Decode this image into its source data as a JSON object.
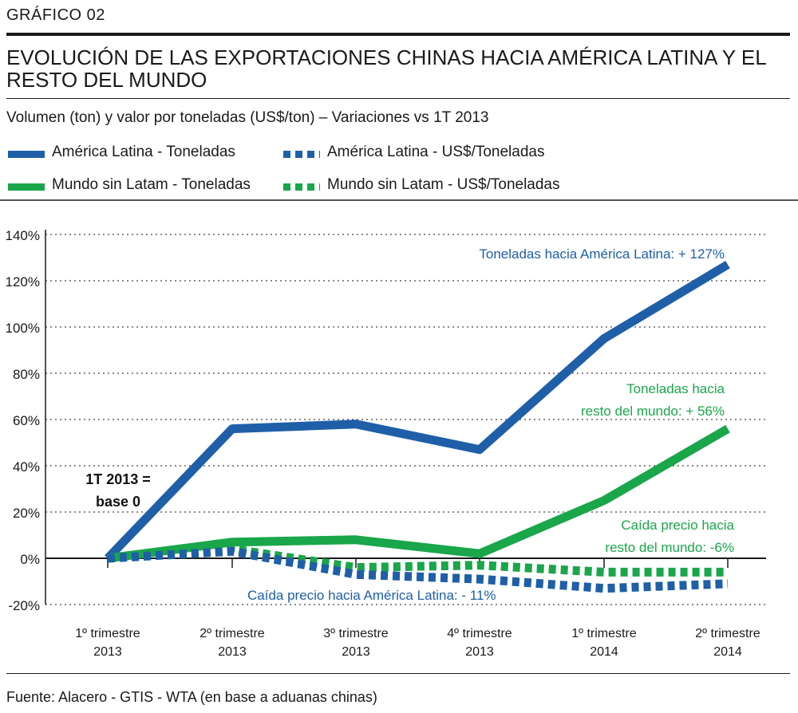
{
  "header": {
    "figure_label": "GRÁFICO  02",
    "title": "EVOLUCIÓN DE LAS EXPORTACIONES CHINAS HACIA AMÉRICA LATINA Y EL RESTO DEL MUNDO",
    "subtitle": "Volumen (ton) y valor por toneladas (US$/ton) – Variaciones vs 1T 2013"
  },
  "legend": [
    {
      "label": "América Latina  - Toneladas",
      "color": "#1f5fa8",
      "style": "solid"
    },
    {
      "label": "América Latina  - US$/Toneladas",
      "color": "#1f5fa8",
      "style": "dotted"
    },
    {
      "label": "Mundo sin Latam  - Toneladas",
      "color": "#1aa64a",
      "style": "solid"
    },
    {
      "label": "Mundo sin Latam  - US$/Toneladas",
      "color": "#1aa64a",
      "style": "dotted"
    }
  ],
  "chart_data": {
    "type": "line",
    "categories": [
      {
        "line1": "1º trimestre",
        "line2": "2013"
      },
      {
        "line1": "2º trimestre",
        "line2": "2013"
      },
      {
        "line1": "3º trimestre",
        "line2": "2013"
      },
      {
        "line1": "4º trimestre",
        "line2": "2013"
      },
      {
        "line1": "1º trimestre",
        "line2": "2014"
      },
      {
        "line1": "2º trimestre",
        "line2": "2014"
      }
    ],
    "y_ticks": [
      "140%",
      "120%",
      "100%",
      "80%",
      "60%",
      "40%",
      "20%",
      "0%",
      "-20%"
    ],
    "ylim": [
      -20,
      140
    ],
    "y_unit": "%",
    "grid": "horizontal dotted",
    "series": [
      {
        "name": "América Latina  - Toneladas",
        "color": "#1f5fa8",
        "style": "solid",
        "values": [
          0,
          56,
          58,
          47,
          95,
          127
        ]
      },
      {
        "name": "Mundo sin Latam  - Toneladas",
        "color": "#1aa64a",
        "style": "solid",
        "values": [
          0,
          7,
          8,
          2,
          25,
          56
        ]
      },
      {
        "name": "Mundo sin Latam  - US$/Toneladas",
        "color": "#1aa64a",
        "style": "dotted",
        "values": [
          0,
          4,
          -4,
          -3,
          -6,
          -6
        ]
      },
      {
        "name": "América Latina  - US$/Toneladas",
        "color": "#1f5fa8",
        "style": "dotted",
        "values": [
          0,
          3,
          -7,
          -9,
          -13,
          -11
        ]
      }
    ],
    "annotations": [
      {
        "id": "latam_tons",
        "lines": [
          "Toneladas hacia América Latina: + 127%"
        ],
        "color": "#1f5fa8"
      },
      {
        "id": "world_tons",
        "lines": [
          "Toneladas hacia",
          "resto del mundo: + 56%"
        ],
        "color": "#1aa64a"
      },
      {
        "id": "world_price",
        "lines": [
          "Caída precio hacia",
          "resto del mundo: -6%"
        ],
        "color": "#1aa64a"
      },
      {
        "id": "latam_price",
        "lines": [
          "Caída precio  hacia  América  Latina: - 11%"
        ],
        "color": "#1f5fa8"
      },
      {
        "id": "base",
        "lines": [
          "1T 2013 =",
          "base 0"
        ],
        "color": "#111111"
      }
    ]
  },
  "footer": {
    "source": "Fuente: Alacero - GTIS - WTA (en base a aduanas chinas)"
  }
}
